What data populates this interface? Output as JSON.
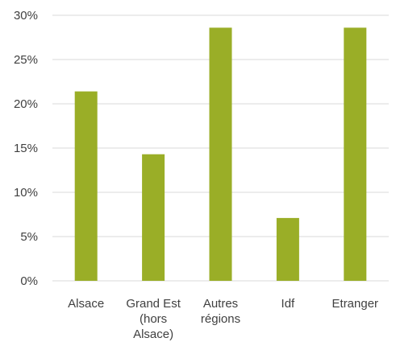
{
  "chart_data": {
    "type": "bar",
    "categories": [
      [
        "Alsace"
      ],
      [
        "Grand Est",
        "(hors",
        "Alsace)"
      ],
      [
        "Autres",
        "régions"
      ],
      [
        "Idf"
      ],
      [
        "Etranger"
      ]
    ],
    "values": [
      21.4,
      14.3,
      28.6,
      7.1,
      28.6
    ],
    "ylim": [
      0,
      30
    ],
    "yticks": [
      "0%",
      "5%",
      "10%",
      "15%",
      "20%",
      "25%",
      "30%"
    ],
    "grid": true,
    "bar_color": "#9aae27",
    "grid_color": "#d9d9d9",
    "text_color": "#404040"
  }
}
